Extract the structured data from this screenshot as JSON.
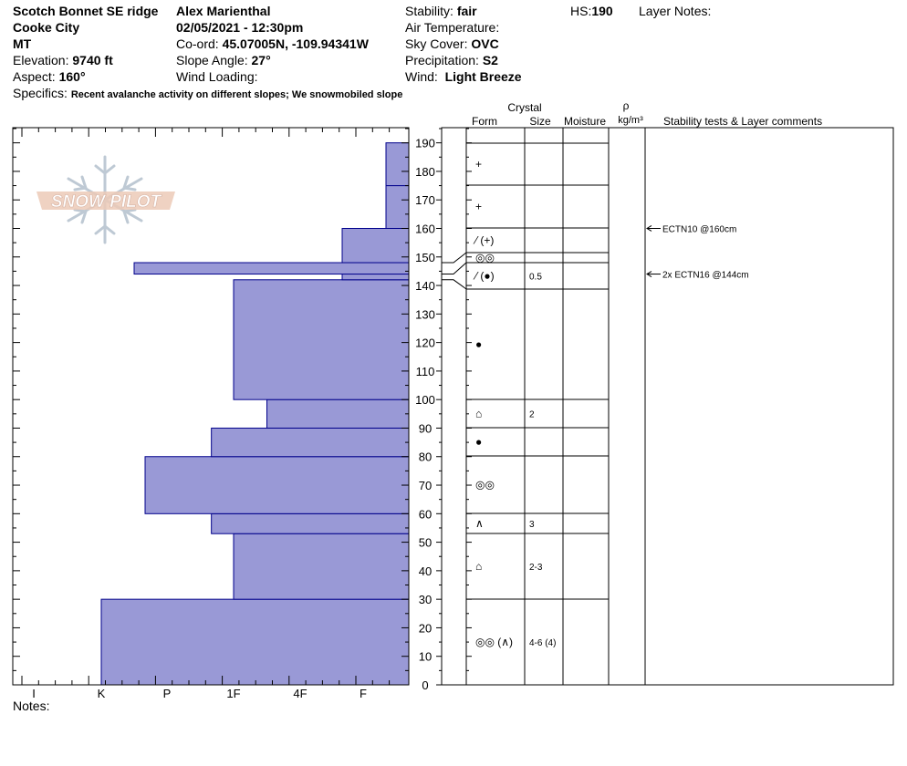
{
  "header": {
    "location": "Scotch Bonnet SE ridge",
    "area": "Cooke City",
    "state": "MT",
    "elevation_label": "Elevation:",
    "elevation_value": "9740 ft",
    "aspect_label": "Aspect:",
    "aspect_value": "160°",
    "observer": "Alex Marienthal",
    "datetime": "02/05/2021 - 12:30pm",
    "coord_label": "Co-ord:",
    "coord_value": "45.07005N, -109.94341W",
    "slope_label": "Slope Angle:",
    "slope_value": "27°",
    "wind_loading_label": "Wind Loading:",
    "stability_label": "Stability:",
    "stability_value": "fair",
    "air_temp_label": "Air Temperature:",
    "sky_label": "Sky Cover:",
    "sky_value": "OVC",
    "precip_label": "Precipitation:",
    "precip_value": "S2",
    "wind_label": "Wind:",
    "wind_value": "Light Breeze",
    "hs_label": "HS:",
    "hs_value": "190",
    "layer_notes_label": "Layer Notes:",
    "specifics_label": "Specifics:",
    "specifics_value": "Recent avalanche activity on different slopes; We snowmobiled slope"
  },
  "logo_text": "SNOW PILOT",
  "notes_label": "Notes:",
  "columns": {
    "crystal": "Crystal",
    "form": "Form",
    "size": "Size",
    "moisture": "Moisture",
    "rho": "ρ",
    "density_unit": "kg/m³",
    "comments": "Stability tests & Layer comments"
  },
  "colors": {
    "hardness_fill": "#9999d6",
    "hardness_stroke": "#00008b",
    "line": "#000000"
  },
  "chart_data": {
    "type": "bar",
    "orientation": "horizontal",
    "title": "",
    "y_axis": {
      "unit": "cm",
      "range": [
        0,
        190
      ],
      "major_ticks": [
        0,
        10,
        20,
        30,
        40,
        50,
        60,
        70,
        80,
        90,
        100,
        110,
        120,
        130,
        140,
        150,
        160,
        170,
        180,
        190
      ]
    },
    "x_axis": {
      "categories": [
        "I",
        "K",
        "P",
        "1F",
        "4F",
        "F"
      ],
      "direction": "harder to the left"
    },
    "hardness_layers": [
      {
        "bottom": 0,
        "top": 30,
        "hardness": "K"
      },
      {
        "bottom": 30,
        "top": 53,
        "hardness": "1F"
      },
      {
        "bottom": 53,
        "top": 60,
        "hardness": "1F+"
      },
      {
        "bottom": 60,
        "top": 80,
        "hardness": "P+"
      },
      {
        "bottom": 80,
        "top": 90,
        "hardness": "1F+"
      },
      {
        "bottom": 90,
        "top": 100,
        "hardness": "1F-"
      },
      {
        "bottom": 100,
        "top": 142,
        "hardness": "1F"
      },
      {
        "bottom": 142,
        "top": 144,
        "hardness": "F+"
      },
      {
        "bottom": 144,
        "top": 148,
        "hardness": "K-"
      },
      {
        "bottom": 148,
        "top": 160,
        "hardness": "F+"
      },
      {
        "bottom": 160,
        "top": 175,
        "hardness": "F-"
      },
      {
        "bottom": 175,
        "top": 190,
        "hardness": "F-"
      }
    ],
    "layers": [
      {
        "bottom": 175,
        "top": 190,
        "form": "+",
        "size": ""
      },
      {
        "bottom": 160,
        "top": 175,
        "form": "+",
        "size": ""
      },
      {
        "bottom": 152,
        "top": 160,
        "form": "⁄ (+)",
        "size": ""
      },
      {
        "bottom": 147,
        "top": 152,
        "form": "◎◎",
        "size": ""
      },
      {
        "bottom": 138,
        "top": 147,
        "form": "⁄ (●)",
        "size": "0.5"
      },
      {
        "bottom": 100,
        "top": 138,
        "form": "●",
        "size": ""
      },
      {
        "bottom": 90,
        "top": 100,
        "form": "⌂",
        "size": "2"
      },
      {
        "bottom": 80,
        "top": 90,
        "form": "●",
        "size": ""
      },
      {
        "bottom": 60,
        "top": 80,
        "form": "◎◎",
        "size": ""
      },
      {
        "bottom": 53,
        "top": 60,
        "form": "∧",
        "size": "3"
      },
      {
        "bottom": 30,
        "top": 53,
        "form": "⌂",
        "size": "2-3"
      },
      {
        "bottom": 0,
        "top": 30,
        "form": "◎◎ (∧)",
        "size": "4-6 (4)"
      }
    ],
    "tests": [
      {
        "depth": 160,
        "text": "ECTN10 @160cm"
      },
      {
        "depth": 144,
        "text": "2x ECTN16 @144cm"
      }
    ]
  }
}
